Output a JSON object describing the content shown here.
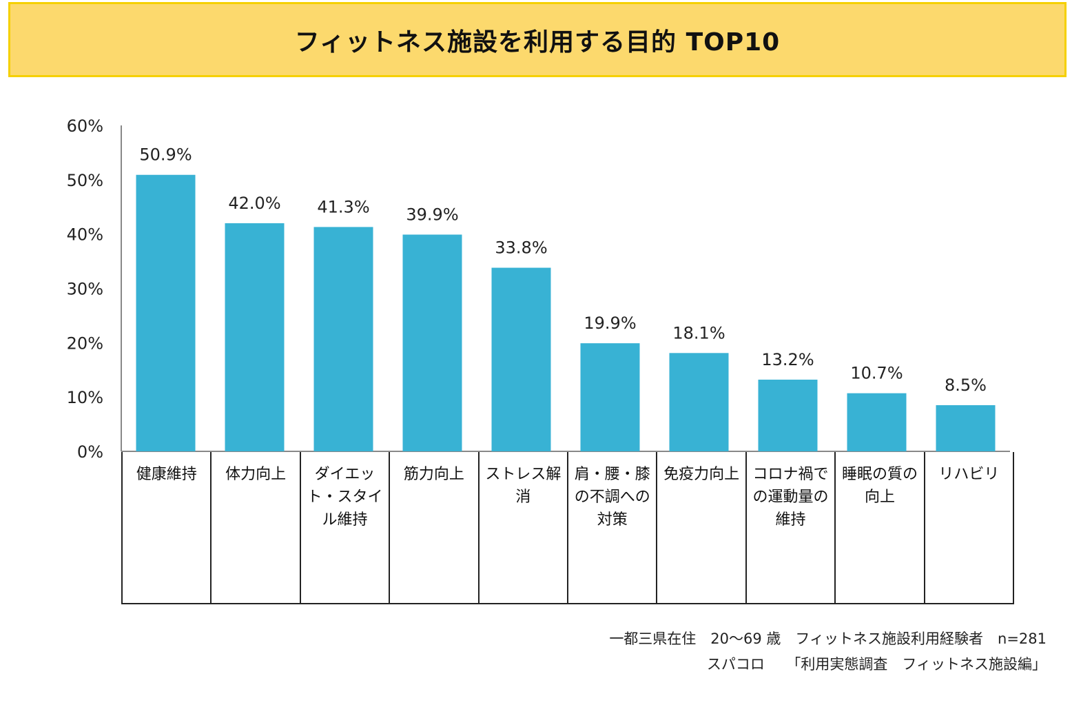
{
  "title": "フィットネス施設を利用する目的 TOP10",
  "chart_data": {
    "type": "bar",
    "title": "フィットネス施設を利用する目的 TOP10",
    "categories": [
      "健康維持",
      "体力向上",
      "ダイエット・スタイル維持",
      "筋力向上",
      "ストレス解消",
      "肩・腰・膝の不調への対策",
      "免疫力向上",
      "コロナ禍での運動量の維持",
      "睡眠の質の向上",
      "リハビリ"
    ],
    "values": [
      50.9,
      42.0,
      41.3,
      39.9,
      33.8,
      19.9,
      18.1,
      13.2,
      10.7,
      8.5
    ],
    "value_labels": [
      "50.9%",
      "42.0%",
      "41.3%",
      "39.9%",
      "33.8%",
      "19.9%",
      "18.1%",
      "13.2%",
      "10.7%",
      "8.5%"
    ],
    "y_ticks": [
      "0%",
      "10%",
      "20%",
      "30%",
      "40%",
      "50%",
      "60%"
    ],
    "ylim": [
      0,
      60
    ],
    "xlabel": "",
    "ylabel": "",
    "bar_color": "#38b2d4",
    "grid": false,
    "legend": "none"
  },
  "footnote": {
    "line1": "一都三県在住　20～69 歳　フィットネス施設利用経験者　n=281",
    "line2": "スパコロ　　「利用実態調査　フィットネス施設編」"
  }
}
